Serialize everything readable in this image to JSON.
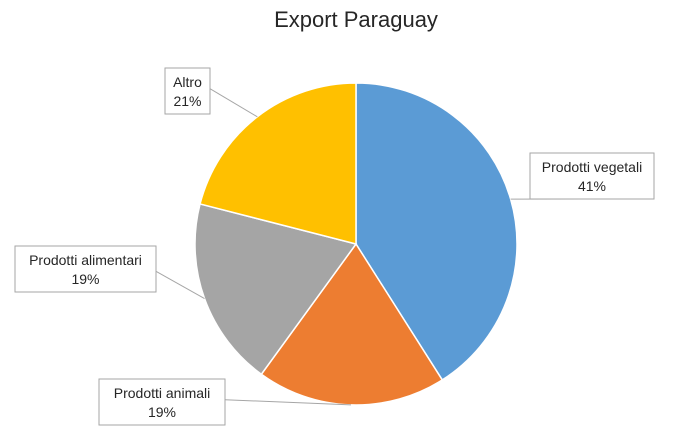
{
  "chart_data": {
    "type": "pie",
    "title": "Export Paraguay",
    "slices": [
      {
        "name": "Prodotti vegetali",
        "value": 41,
        "percent_label": "41%",
        "color": "#5b9bd5"
      },
      {
        "name": "Prodotti animali",
        "value": 19,
        "percent_label": "19%",
        "color": "#ed7d31"
      },
      {
        "name": "Prodotti alimentari",
        "value": 19,
        "percent_label": "19%",
        "color": "#a5a5a5"
      },
      {
        "name": "Altro",
        "value": 21,
        "percent_label": "21%",
        "color": "#ffc000"
      }
    ],
    "start_angle": "12 o'clock",
    "direction": "clockwise",
    "legend": "none"
  }
}
